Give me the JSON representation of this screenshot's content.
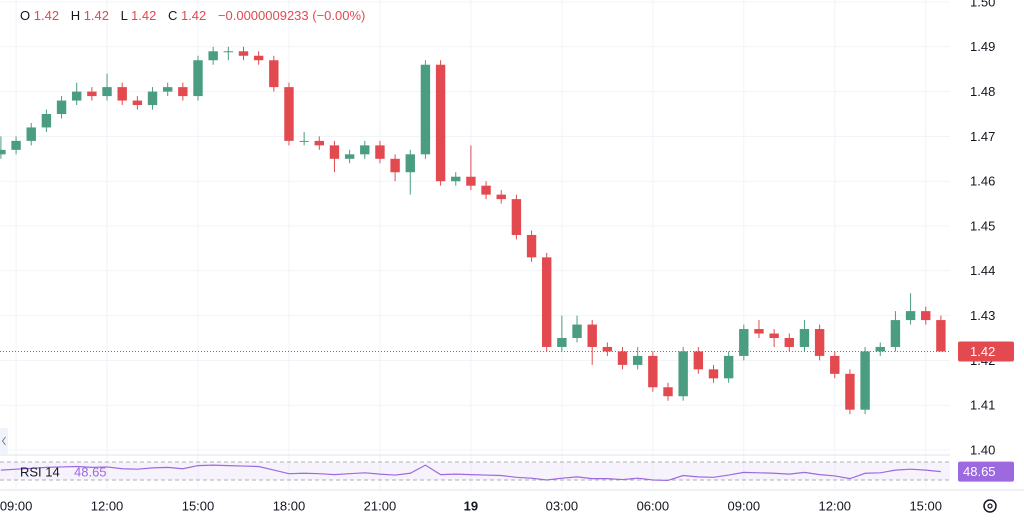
{
  "chart_data": {
    "type": "candlestick",
    "header": {
      "open_label": "O",
      "open": 1.42,
      "high_label": "H",
      "high": 1.42,
      "low_label": "L",
      "low": 1.42,
      "close_label": "C",
      "close": 1.42,
      "change": "−0.0000009233 (−0.00%)"
    },
    "up_color": "#4a9d80",
    "down_color": "#e24a4f",
    "x": [
      8.5,
      9,
      9.5,
      10,
      10.5,
      11,
      11.5,
      12,
      12.5,
      13,
      13.5,
      14,
      14.5,
      15,
      15.5,
      16,
      16.5,
      17,
      17.5,
      18,
      18.5,
      19,
      19.5,
      20,
      20.5,
      21,
      21.5,
      22,
      22.5,
      23,
      23.5,
      24,
      24.5,
      25,
      25.5,
      26,
      26.5,
      27,
      27.5,
      28,
      28.5,
      29,
      29.5,
      30,
      30.5,
      31,
      31.5,
      32,
      32.5,
      33,
      33.5,
      34,
      34.5,
      35,
      35.5,
      36,
      36.5,
      37,
      37.5,
      38,
      38.5,
      39,
      39.5
    ],
    "open": [
      1.466,
      1.467,
      1.469,
      1.472,
      1.475,
      1.478,
      1.48,
      1.479,
      1.481,
      1.478,
      1.477,
      1.48,
      1.481,
      1.479,
      1.487,
      1.489,
      1.489,
      1.488,
      1.487,
      1.481,
      1.469,
      1.469,
      1.468,
      1.465,
      1.466,
      1.468,
      1.465,
      1.462,
      1.466,
      1.486,
      1.46,
      1.461,
      1.459,
      1.457,
      1.456,
      1.448,
      1.443,
      1.423,
      1.425,
      1.428,
      1.423,
      1.422,
      1.419,
      1.421,
      1.414,
      1.412,
      1.422,
      1.418,
      1.416,
      1.421,
      1.427,
      1.426,
      1.425,
      1.423,
      1.427,
      1.421,
      1.417,
      1.409,
      1.422,
      1.423,
      1.429,
      1.431,
      1.429
    ],
    "high": [
      1.47,
      1.47,
      1.473,
      1.476,
      1.479,
      1.482,
      1.481,
      1.484,
      1.482,
      1.479,
      1.481,
      1.482,
      1.482,
      1.488,
      1.49,
      1.49,
      1.49,
      1.489,
      1.488,
      1.482,
      1.471,
      1.47,
      1.469,
      1.467,
      1.469,
      1.469,
      1.466,
      1.467,
      1.487,
      1.487,
      1.462,
      1.468,
      1.46,
      1.458,
      1.457,
      1.449,
      1.444,
      1.43,
      1.43,
      1.429,
      1.424,
      1.423,
      1.423,
      1.422,
      1.415,
      1.423,
      1.423,
      1.419,
      1.422,
      1.428,
      1.429,
      1.427,
      1.426,
      1.429,
      1.428,
      1.422,
      1.418,
      1.423,
      1.424,
      1.431,
      1.435,
      1.432,
      1.43
    ],
    "low": [
      1.465,
      1.466,
      1.468,
      1.471,
      1.474,
      1.477,
      1.478,
      1.478,
      1.477,
      1.476,
      1.476,
      1.479,
      1.478,
      1.478,
      1.486,
      1.487,
      1.487,
      1.486,
      1.48,
      1.468,
      1.468,
      1.467,
      1.462,
      1.464,
      1.465,
      1.464,
      1.46,
      1.457,
      1.465,
      1.459,
      1.459,
      1.458,
      1.456,
      1.455,
      1.447,
      1.442,
      1.422,
      1.422,
      1.424,
      1.419,
      1.421,
      1.418,
      1.418,
      1.413,
      1.411,
      1.411,
      1.417,
      1.415,
      1.415,
      1.42,
      1.425,
      1.423,
      1.422,
      1.422,
      1.42,
      1.416,
      1.408,
      1.408,
      1.421,
      1.422,
      1.428,
      1.428,
      1.422
    ],
    "close": [
      1.467,
      1.469,
      1.472,
      1.475,
      1.478,
      1.48,
      1.479,
      1.481,
      1.478,
      1.477,
      1.48,
      1.481,
      1.479,
      1.487,
      1.489,
      1.489,
      1.488,
      1.487,
      1.481,
      1.469,
      1.469,
      1.468,
      1.465,
      1.466,
      1.468,
      1.465,
      1.462,
      1.466,
      1.486,
      1.46,
      1.461,
      1.459,
      1.457,
      1.456,
      1.448,
      1.443,
      1.423,
      1.425,
      1.428,
      1.423,
      1.422,
      1.419,
      1.421,
      1.414,
      1.412,
      1.422,
      1.418,
      1.416,
      1.421,
      1.427,
      1.426,
      1.425,
      1.423,
      1.427,
      1.421,
      1.417,
      1.409,
      1.422,
      1.423,
      1.429,
      1.431,
      1.429,
      1.422
    ],
    "last_price": {
      "value": 1.422,
      "label": "1.42"
    },
    "xlim": [
      8.47,
      39.8
    ],
    "xticks": [
      {
        "value": 9,
        "label": "09:00"
      },
      {
        "value": 12,
        "label": "12:00"
      },
      {
        "value": 15,
        "label": "15:00"
      },
      {
        "value": 18,
        "label": "18:00"
      },
      {
        "value": 21,
        "label": "21:00"
      },
      {
        "value": 24,
        "label": "19"
      },
      {
        "value": 27,
        "label": "03:00"
      },
      {
        "value": 30,
        "label": "06:00"
      },
      {
        "value": 33,
        "label": "09:00"
      },
      {
        "value": 36,
        "label": "12:00"
      },
      {
        "value": 39,
        "label": "15:00"
      }
    ],
    "ylim": [
      1.4,
      1.5
    ],
    "yticks": [
      {
        "value": 1.4,
        "label": "1.40"
      },
      1.41,
      1.42,
      1.43,
      1.44,
      1.45,
      1.46,
      1.47,
      1.48,
      1.49,
      {
        "value": 1.5,
        "label": "1.50"
      }
    ],
    "grid": true,
    "rsi": {
      "name": "RSI 14",
      "color": "#9c6ade",
      "ylim": [
        0,
        100
      ],
      "bands": [
        30,
        70
      ],
      "values": [
        52,
        54,
        56,
        58,
        59,
        60,
        58,
        59,
        55,
        54,
        57,
        58,
        55,
        62,
        63,
        62,
        61,
        60,
        52,
        44,
        45,
        44,
        42,
        44,
        46,
        43,
        41,
        45,
        63,
        42,
        43,
        42,
        41,
        40,
        36,
        34,
        30,
        34,
        37,
        33,
        33,
        31,
        34,
        30,
        29,
        40,
        37,
        36,
        41,
        47,
        46,
        45,
        43,
        47,
        42,
        39,
        33,
        45,
        46,
        52,
        54,
        52,
        48.65
      ]
    }
  }
}
